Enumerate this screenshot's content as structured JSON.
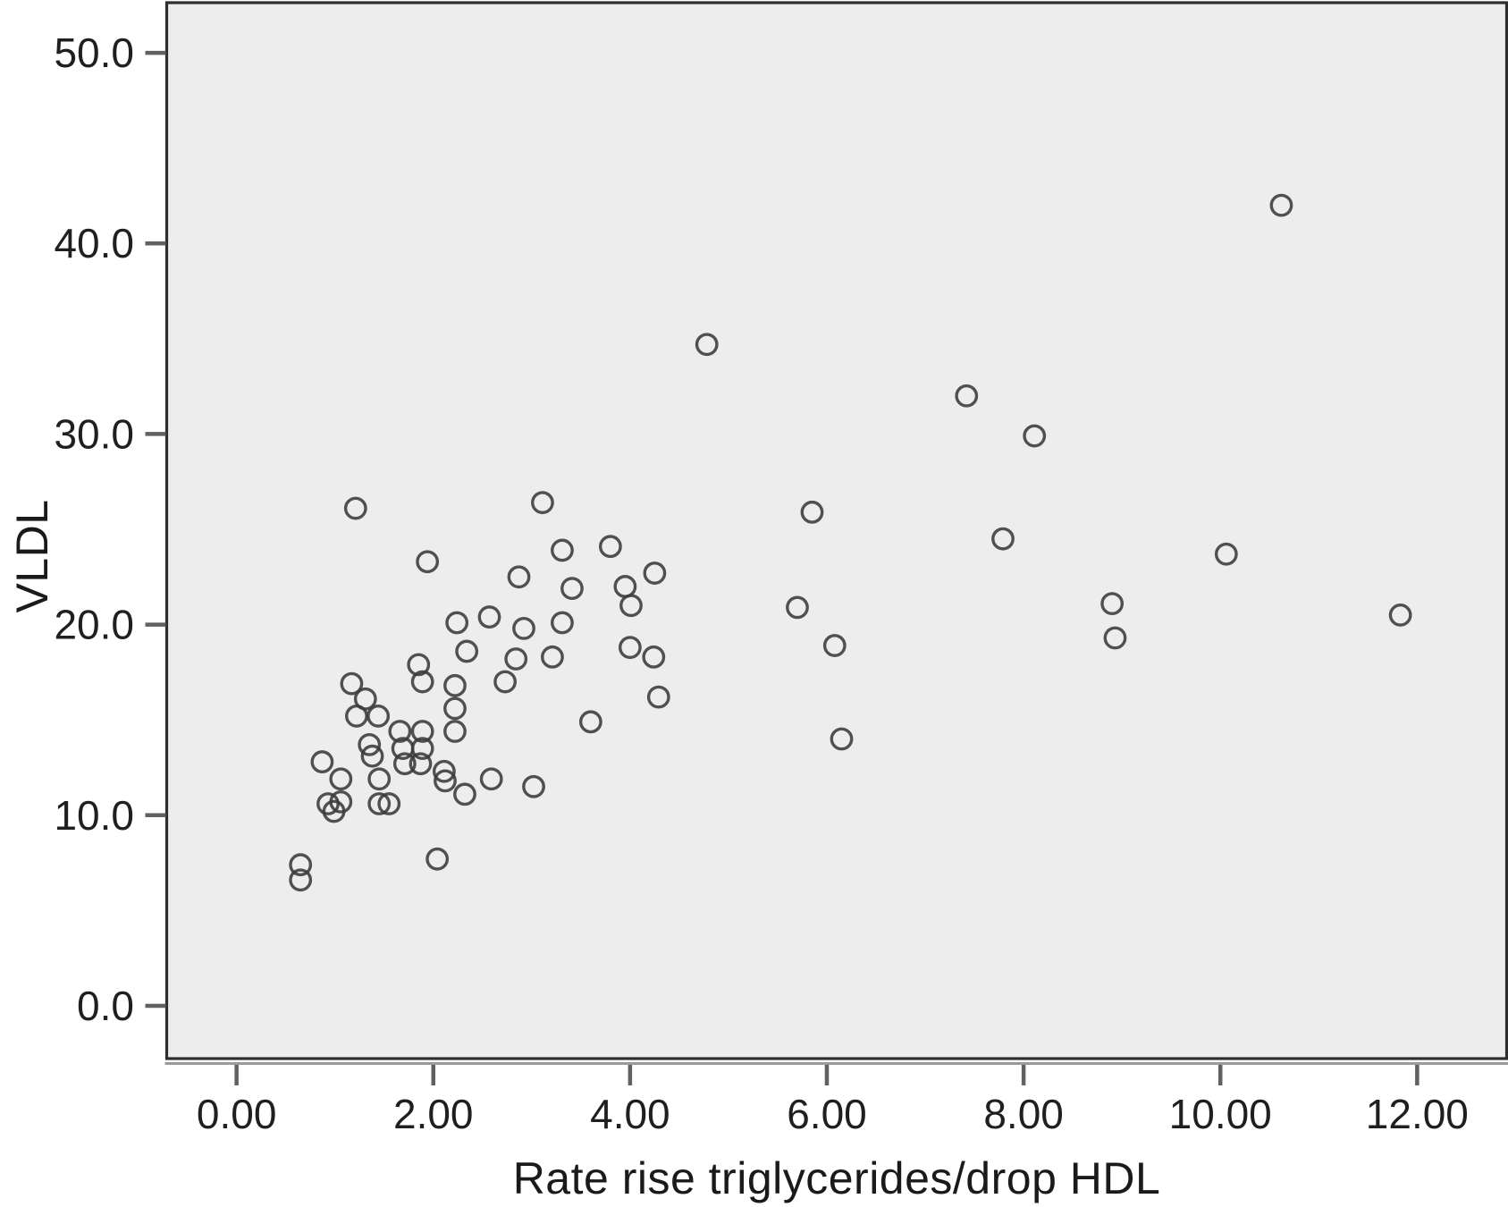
{
  "figure": {
    "background": "#ffffff",
    "plot_background": "#ededee",
    "border_color": "#2e2e2e",
    "shadow_line_color": "#9a9a9a",
    "tick_color": "#616161",
    "tick_label_color": "#1f1f1f",
    "marker_color": "#3a3a3a"
  },
  "chart_data": {
    "type": "scatter",
    "title": "",
    "xlabel": "Rate rise triglycerides/drop HDL",
    "ylabel": "VLDL",
    "xlim": [
      -0.71,
      12.91
    ],
    "ylim": [
      -2.77,
      52.63
    ],
    "grid": false,
    "legend": null,
    "marker": "open-circle",
    "x_ticks": [
      {
        "value": 0,
        "label": "0.00"
      },
      {
        "value": 2,
        "label": "2.00"
      },
      {
        "value": 4,
        "label": "4.00"
      },
      {
        "value": 6,
        "label": "6.00"
      },
      {
        "value": 8,
        "label": "8.00"
      },
      {
        "value": 10,
        "label": "10.00"
      },
      {
        "value": 12,
        "label": "12.00"
      }
    ],
    "y_ticks": [
      {
        "value": 0,
        "label": "0.0"
      },
      {
        "value": 10,
        "label": "10.0"
      },
      {
        "value": 20,
        "label": "20.0"
      },
      {
        "value": 30,
        "label": "30.0"
      },
      {
        "value": 40,
        "label": "40.0"
      },
      {
        "value": 50,
        "label": "50.0"
      }
    ],
    "points": [
      [
        0.65,
        7.4
      ],
      [
        0.65,
        6.6
      ],
      [
        0.87,
        12.8
      ],
      [
        0.93,
        10.6
      ],
      [
        1.06,
        10.7
      ],
      [
        0.99,
        10.2
      ],
      [
        1.06,
        11.9
      ],
      [
        1.45,
        11.9
      ],
      [
        1.17,
        16.9
      ],
      [
        1.21,
        26.1
      ],
      [
        1.22,
        15.2
      ],
      [
        1.44,
        15.2
      ],
      [
        1.31,
        16.1
      ],
      [
        1.35,
        13.7
      ],
      [
        1.38,
        13.1
      ],
      [
        1.45,
        10.6
      ],
      [
        1.55,
        10.6
      ],
      [
        1.66,
        14.4
      ],
      [
        1.89,
        14.4
      ],
      [
        1.69,
        13.5
      ],
      [
        1.89,
        13.5
      ],
      [
        1.71,
        12.7
      ],
      [
        1.87,
        12.7
      ],
      [
        1.85,
        17.9
      ],
      [
        1.89,
        17.0
      ],
      [
        1.94,
        23.3
      ],
      [
        2.04,
        7.7
      ],
      [
        2.11,
        12.3
      ],
      [
        2.12,
        11.8
      ],
      [
        2.24,
        20.1
      ],
      [
        2.32,
        11.1
      ],
      [
        2.59,
        11.9
      ],
      [
        2.22,
        16.8
      ],
      [
        2.22,
        15.6
      ],
      [
        2.22,
        14.4
      ],
      [
        2.34,
        18.6
      ],
      [
        2.57,
        20.4
      ],
      [
        2.73,
        17.0
      ],
      [
        2.84,
        18.2
      ],
      [
        2.87,
        22.5
      ],
      [
        2.92,
        19.8
      ],
      [
        3.02,
        11.5
      ],
      [
        3.11,
        26.4
      ],
      [
        3.21,
        18.3
      ],
      [
        3.31,
        23.9
      ],
      [
        3.31,
        20.1
      ],
      [
        3.41,
        21.9
      ],
      [
        3.6,
        14.9
      ],
      [
        3.8,
        24.1
      ],
      [
        3.95,
        22.0
      ],
      [
        4.01,
        21.0
      ],
      [
        4.0,
        18.8
      ],
      [
        4.24,
        18.3
      ],
      [
        4.25,
        22.7
      ],
      [
        4.29,
        16.2
      ],
      [
        4.78,
        34.7
      ],
      [
        5.85,
        25.9
      ],
      [
        5.7,
        20.9
      ],
      [
        6.08,
        18.9
      ],
      [
        6.15,
        14.0
      ],
      [
        7.42,
        32.0
      ],
      [
        8.11,
        29.9
      ],
      [
        7.79,
        24.5
      ],
      [
        8.9,
        21.1
      ],
      [
        8.93,
        19.3
      ],
      [
        10.06,
        23.7
      ],
      [
        10.62,
        42.0
      ],
      [
        11.83,
        20.5
      ]
    ]
  }
}
